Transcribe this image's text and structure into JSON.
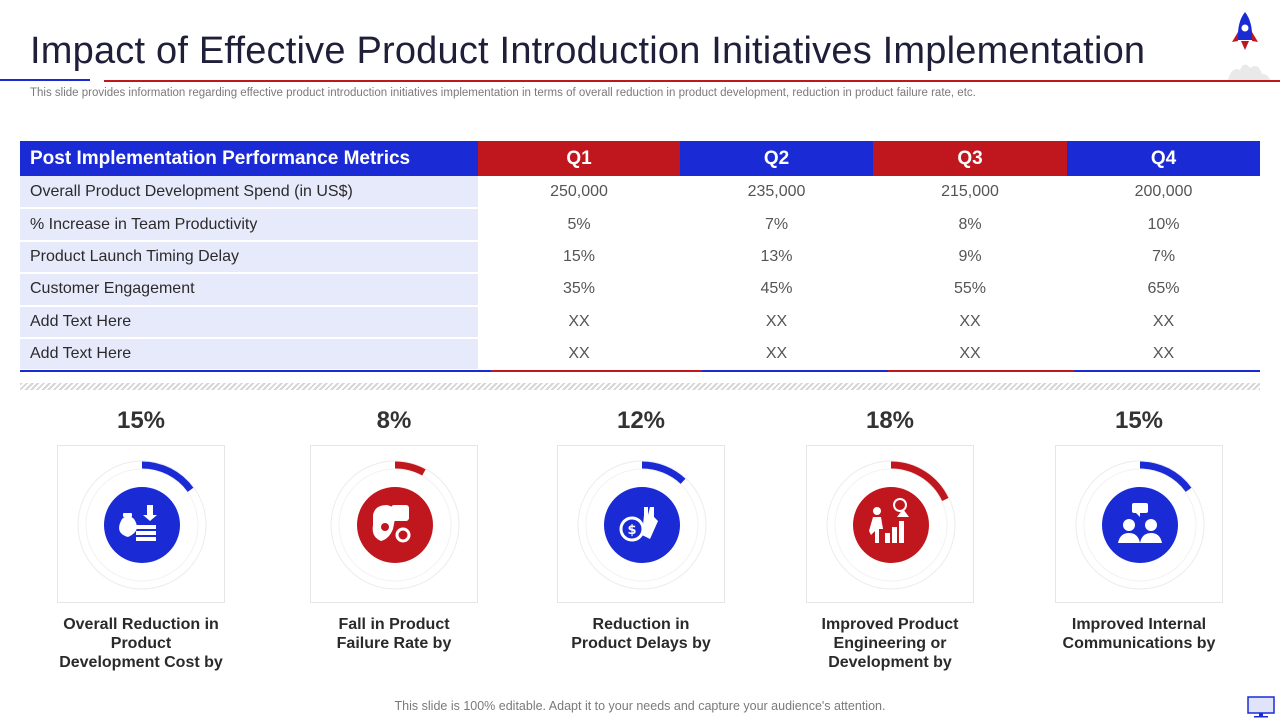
{
  "slide": {
    "title": "Impact of Effective Product Introduction Initiatives Implementation",
    "subtitle": "This slide provides information regarding effective product introduction initiatives implementation in terms of overall reduction in product development, reduction in product failure rate, etc.",
    "footer": "This slide is 100% editable. Adapt it to your needs and capture your audience's attention."
  },
  "colors": {
    "blue": "#1a2bd6",
    "red": "#c0171f",
    "light_row": "#e6eafb"
  },
  "table": {
    "header": "Post Implementation Performance Metrics",
    "quarters": [
      "Q1",
      "Q2",
      "Q3",
      "Q4"
    ],
    "rows": [
      {
        "label": "Overall Product Development Spend (in US$)",
        "values": [
          "250,000",
          "235,000",
          "215,000",
          "200,000"
        ]
      },
      {
        "label": "% Increase in Team Productivity",
        "values": [
          "5%",
          "7%",
          "8%",
          "10%"
        ]
      },
      {
        "label": "Product Launch Timing Delay",
        "values": [
          "15%",
          "13%",
          "9%",
          "7%"
        ]
      },
      {
        "label": "Customer Engagement",
        "values": [
          "35%",
          "45%",
          "55%",
          "65%"
        ]
      },
      {
        "label": "Add Text Here",
        "values": [
          "XX",
          "XX",
          "XX",
          "XX"
        ]
      },
      {
        "label": "Add Text Here",
        "values": [
          "XX",
          "XX",
          "XX",
          "XX"
        ]
      }
    ]
  },
  "kpis": [
    {
      "percent": "15%",
      "fraction": 0.15,
      "color": "#1a2bd6",
      "icon": "money-bag-icon",
      "caption_lines": [
        "Overall Reduction in Product",
        "Development Cost by"
      ]
    },
    {
      "percent": "8%",
      "fraction": 0.08,
      "color": "#c0171f",
      "icon": "thumbs-down-icon",
      "caption_lines": [
        "Fall in Product",
        "Failure Rate by"
      ]
    },
    {
      "percent": "12%",
      "fraction": 0.12,
      "color": "#1a2bd6",
      "icon": "coin-hand-icon",
      "caption_lines": [
        "Reduction in",
        "Product Delays by"
      ]
    },
    {
      "percent": "18%",
      "fraction": 0.18,
      "color": "#c0171f",
      "icon": "growth-person-icon",
      "caption_lines": [
        "Improved Product",
        "Engineering or",
        "Development by"
      ]
    },
    {
      "percent": "15%",
      "fraction": 0.15,
      "color": "#1a2bd6",
      "icon": "team-communication-icon",
      "caption_lines": [
        "Improved Internal",
        "Communications by"
      ]
    }
  ]
}
